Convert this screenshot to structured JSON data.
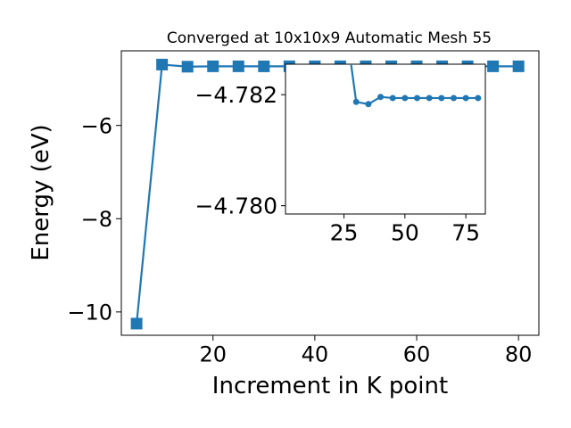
{
  "figure": {
    "title": "Converged at 10x10x9 Automatic Mesh 55"
  },
  "chart_data": [
    {
      "name": "main",
      "type": "line",
      "title": "Converged at 10x10x9 Automatic Mesh 55",
      "xlabel": "Increment in K point",
      "ylabel": "Energy (eV)",
      "xlim": [
        2,
        84
      ],
      "ylim": [
        -10.5,
        -4.4
      ],
      "xticks": [
        20,
        40,
        60,
        80
      ],
      "yticks": [
        -10,
        -8,
        -6
      ],
      "tick_labels_x": [
        "20",
        "40",
        "60",
        "80"
      ],
      "tick_labels_y": [
        "−10",
        "−8",
        "−6"
      ],
      "grid": false,
      "legend": "none",
      "series": [
        {
          "color": "#1f77b4",
          "marker": "square",
          "x": [
            5,
            10,
            15,
            20,
            25,
            30,
            35,
            40,
            45,
            50,
            55,
            60,
            65,
            70,
            75,
            80
          ],
          "y": [
            -10.25,
            -4.695,
            -4.74,
            -4.732,
            -4.732,
            -4.733,
            -4.732,
            -4.732,
            -4.732,
            -4.732,
            -4.732,
            -4.732,
            -4.732,
            -4.732,
            -4.732,
            -4.732
          ]
        }
      ]
    },
    {
      "name": "inset",
      "type": "line",
      "xlabel": "",
      "ylabel": "",
      "xlim": [
        1,
        83
      ],
      "ylim": [
        -4.77985,
        -4.78255
      ],
      "xticks": [
        25,
        50,
        75
      ],
      "yticks": [
        -4.782,
        -4.78
      ],
      "tick_labels_x": [
        "25",
        "50",
        "75"
      ],
      "tick_labels_y": [
        "−4.782",
        "−4.780"
      ],
      "grid": false,
      "legend": "none",
      "series": [
        {
          "color": "#1f77b4",
          "marker": "circle",
          "x": [
            25,
            30,
            35,
            40,
            45,
            50,
            55,
            60,
            65,
            70,
            75,
            80
          ],
          "y": [
            -4.7835,
            -4.78187,
            -4.78183,
            -4.78196,
            -4.78194,
            -4.78194,
            -4.78194,
            -4.78194,
            -4.78194,
            -4.78194,
            -4.78194,
            -4.78194
          ]
        }
      ]
    }
  ]
}
